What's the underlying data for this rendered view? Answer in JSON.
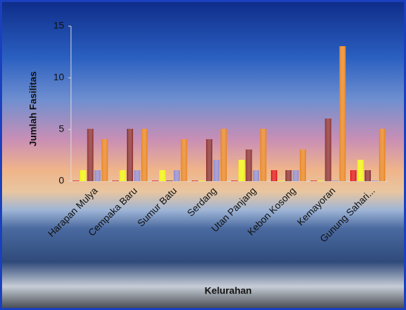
{
  "chart_data": {
    "type": "bar",
    "y_label": "Jumlah Fasilitas",
    "x_label": "Kelurahan",
    "categories": [
      "Harapan Mulya",
      "Cempaka Baru",
      "Sumur Batu",
      "Serdang",
      "Utan Panjang",
      "Kebon Kosong",
      "Kemayoran",
      "Gunung Sahari..."
    ],
    "series": [
      {
        "color": "#e01010",
        "values": [
          0,
          0,
          0,
          0,
          0,
          1,
          0,
          1
        ]
      },
      {
        "color": "#f2f20a",
        "values": [
          1,
          1,
          1,
          0,
          2,
          0,
          0,
          2
        ]
      },
      {
        "color": "#8a2a2a",
        "values": [
          5,
          5,
          0,
          4,
          3,
          1,
          6,
          1
        ]
      },
      {
        "color": "#8f86c8",
        "values": [
          1,
          1,
          1,
          2,
          1,
          1,
          0,
          0
        ]
      },
      {
        "color": "#e8801a",
        "values": [
          4,
          5,
          4,
          5,
          5,
          3,
          13,
          5
        ]
      }
    ],
    "ylim": [
      0,
      15
    ],
    "yticks": [
      0,
      5,
      10,
      15
    ]
  }
}
